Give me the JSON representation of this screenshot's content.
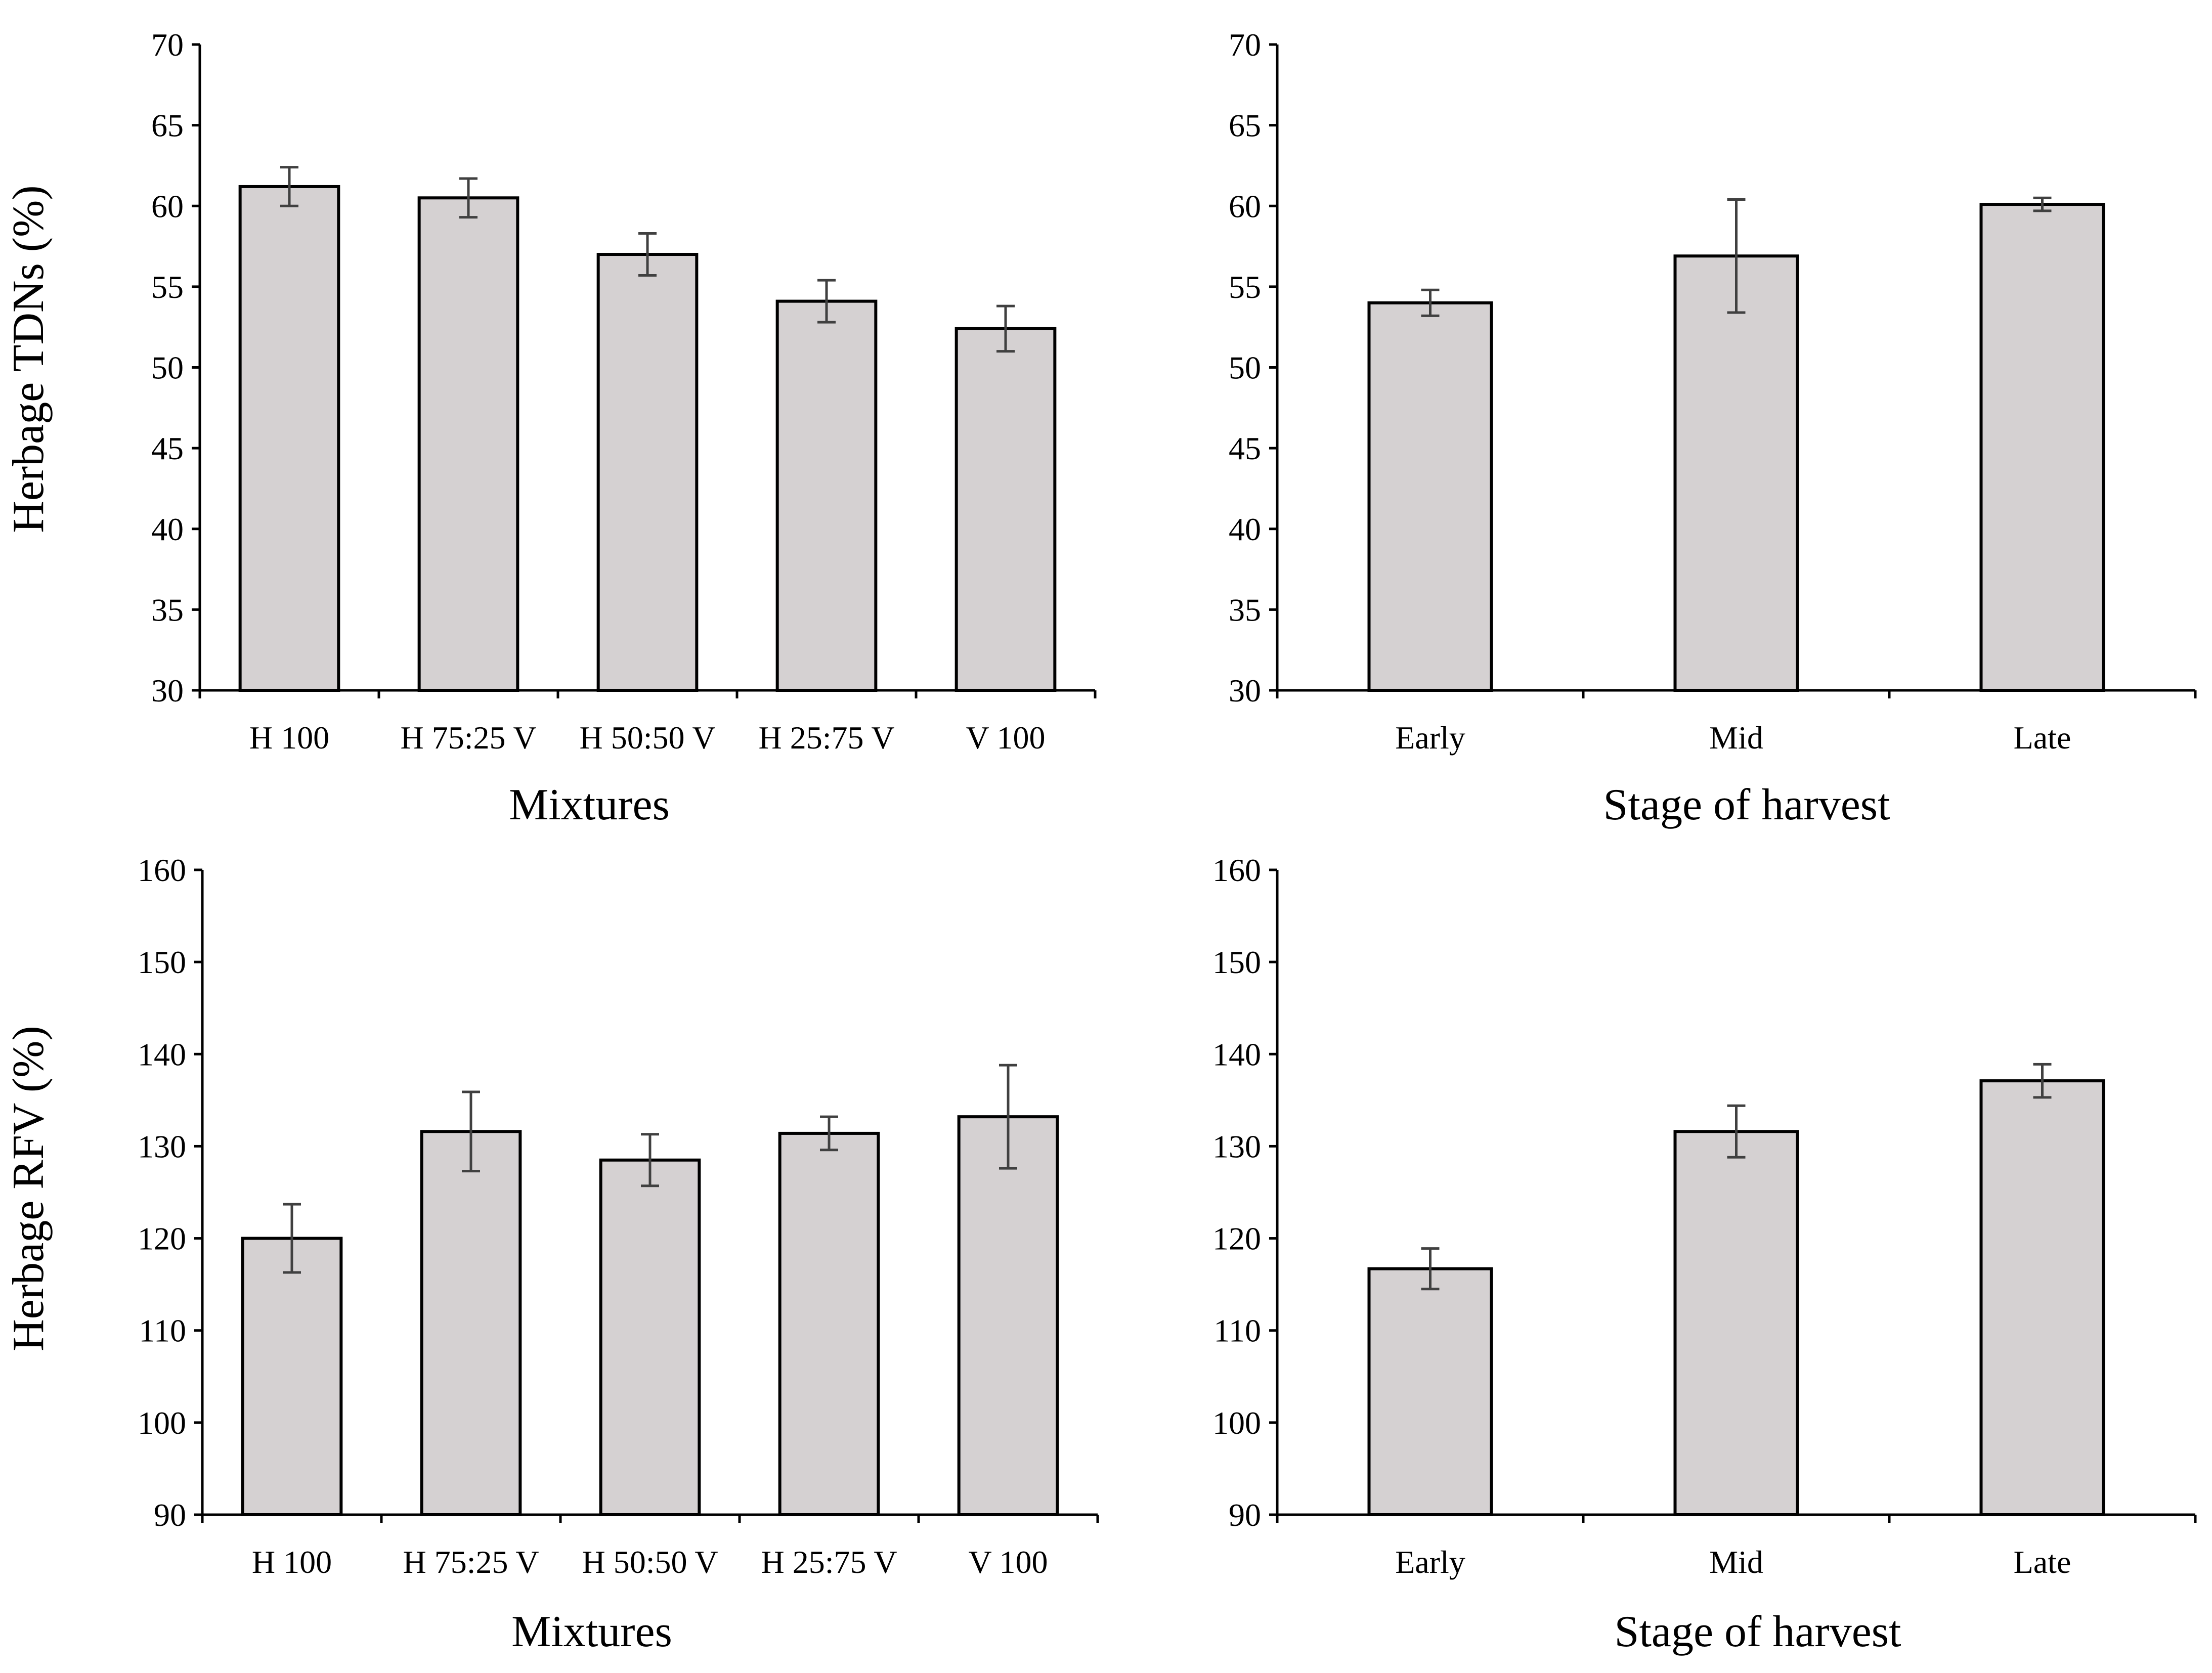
{
  "colors": {
    "bar_fill": "#d5d1d2",
    "bar_stroke": "#000000",
    "axis": "#000000",
    "error_bar": "#404040",
    "background": "#ffffff"
  },
  "chart_data": [
    {
      "id": "tdn-mixtures",
      "type": "bar",
      "title": "",
      "xlabel": "Mixtures",
      "ylabel": "Herbage  TDNs (%)",
      "categories": [
        "H 100",
        "H 75:25 V",
        "H 50:50 V",
        "H 25:75 V",
        "V 100"
      ],
      "values": [
        61.2,
        60.5,
        57.0,
        54.1,
        52.4
      ],
      "errors": [
        1.2,
        1.2,
        1.3,
        1.3,
        1.4
      ],
      "ylim": [
        30,
        70
      ],
      "yticks": [
        30,
        35,
        40,
        45,
        50,
        55,
        60,
        65,
        70
      ],
      "grid": false,
      "legend": "none"
    },
    {
      "id": "tdn-stage",
      "type": "bar",
      "title": "",
      "xlabel": "Stage of harvest",
      "ylabel": "",
      "categories": [
        "Early",
        "Mid",
        "Late"
      ],
      "values": [
        54.0,
        56.9,
        60.1
      ],
      "errors": [
        0.8,
        3.5,
        0.4
      ],
      "ylim": [
        30,
        70
      ],
      "yticks": [
        30,
        35,
        40,
        45,
        50,
        55,
        60,
        65,
        70
      ],
      "grid": false,
      "legend": "none"
    },
    {
      "id": "rfv-mixtures",
      "type": "bar",
      "title": "",
      "xlabel": "Mixtures",
      "ylabel": "Herbage  RFV (%)",
      "categories": [
        "H 100",
        "H 75:25 V",
        "H 50:50 V",
        "H 25:75 V",
        "V 100"
      ],
      "values": [
        120.0,
        131.6,
        128.5,
        131.4,
        133.2
      ],
      "errors": [
        3.7,
        4.3,
        2.8,
        1.8,
        5.6
      ],
      "ylim": [
        90,
        160
      ],
      "yticks": [
        90,
        100,
        110,
        120,
        130,
        140,
        150,
        160
      ],
      "grid": false,
      "legend": "none"
    },
    {
      "id": "rfv-stage",
      "type": "bar",
      "title": "",
      "xlabel": "Stage of harvest",
      "ylabel": "",
      "categories": [
        "Early",
        "Mid",
        "Late"
      ],
      "values": [
        116.7,
        131.6,
        137.1
      ],
      "errors": [
        2.2,
        2.8,
        1.8
      ],
      "ylim": [
        90,
        160
      ],
      "yticks": [
        90,
        100,
        110,
        120,
        130,
        140,
        150,
        160
      ],
      "grid": false,
      "legend": "none"
    }
  ]
}
